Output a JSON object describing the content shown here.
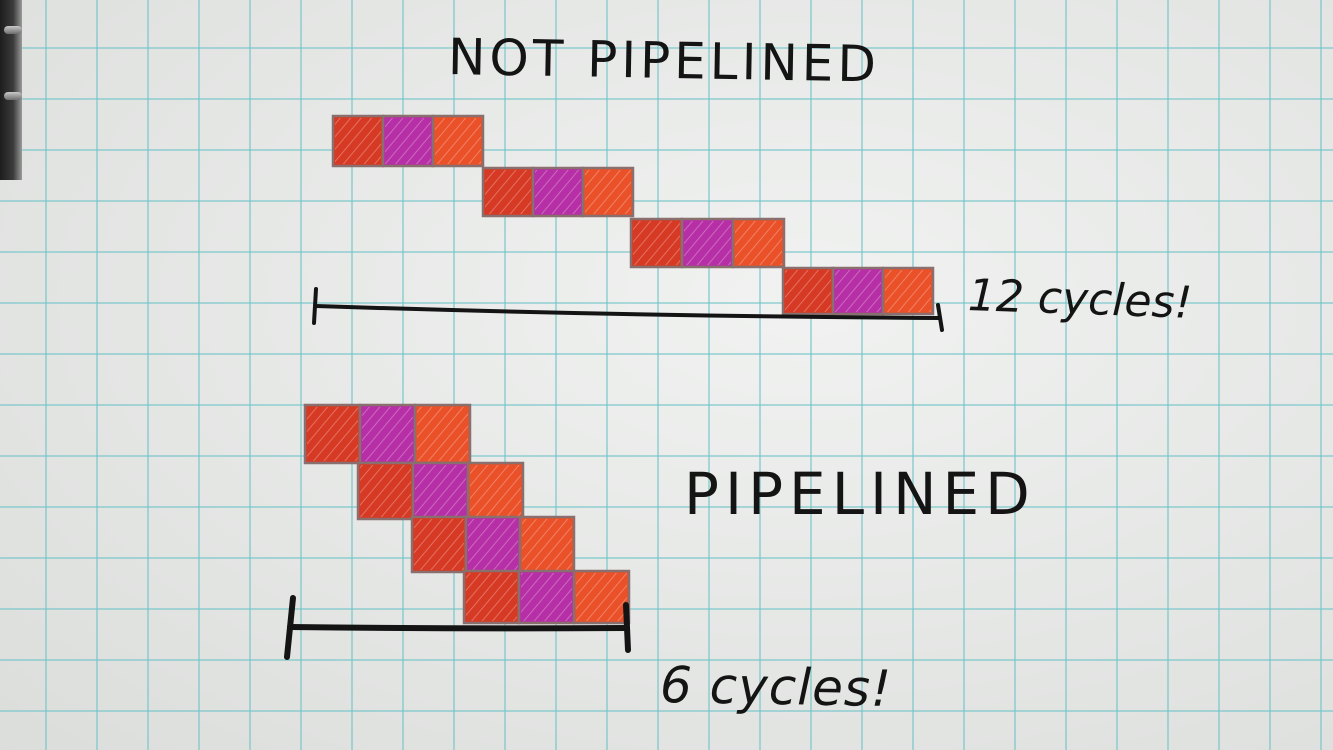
{
  "diagram": {
    "top_title": "NOT PIPELINED",
    "top_total": "12 cycles!",
    "bottom_title": "PIPELINED",
    "bottom_total": "6 cycles!",
    "stage_colors": [
      "#d73a24",
      "#b72fa6",
      "#ea5129"
    ],
    "border_color": "#8a6f6f",
    "ink_color": "#141414"
  }
}
